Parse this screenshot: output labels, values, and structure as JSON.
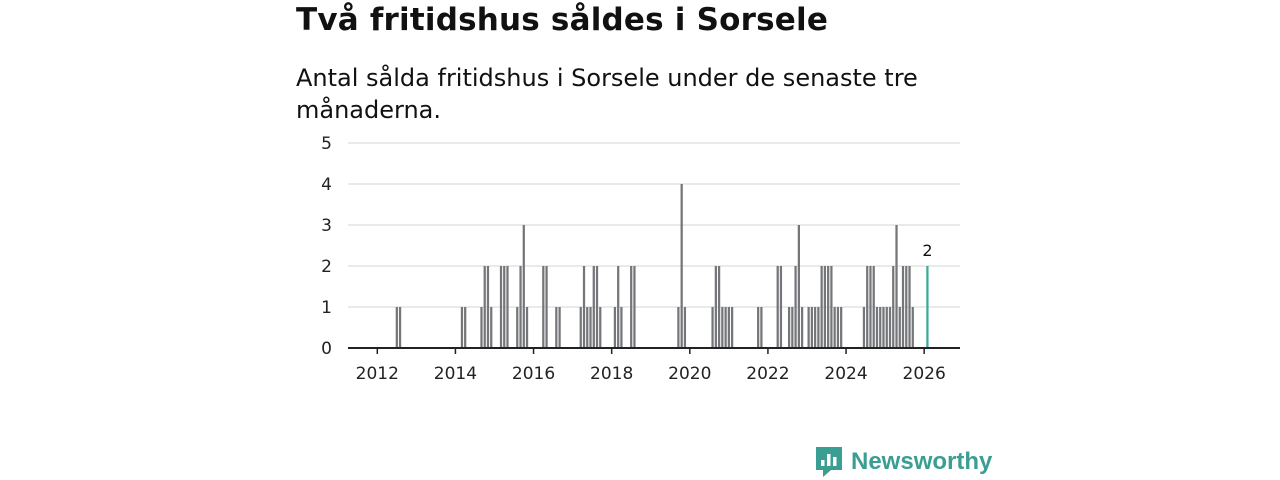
{
  "header": {
    "title": "Två fritidshus såldes i Sorsele",
    "subtitle": "Antal sålda fritidshus i Sorsele under de senaste tre månaderna."
  },
  "brand": {
    "name": "Newsworthy",
    "icon": "newsworthy-logo-icon",
    "color": "#3a9e93"
  },
  "colors": {
    "bar": "#75767a",
    "highlight": "#3aa89b",
    "grid": "#dddddd",
    "axis": "#222222"
  },
  "chart_data": {
    "type": "bar",
    "title": "Två fritidshus såldes i Sorsele",
    "subtitle": "Antal sålda fritidshus i Sorsele under de senaste tre månaderna.",
    "xlabel": "",
    "ylabel": "",
    "xlim": [
      2011.25,
      2026.917
    ],
    "ylim": [
      0,
      5
    ],
    "yticks": [
      0,
      1,
      2,
      3,
      4,
      5
    ],
    "xticks": [
      "2012",
      "2014",
      "2016",
      "2018",
      "2020",
      "2022",
      "2024",
      "2026"
    ],
    "xtick_values": [
      2012,
      2014,
      2016,
      2018,
      2020,
      2022,
      2024,
      2026
    ],
    "grid": true,
    "bar_width_years": 0.0833,
    "x": [
      2012.5,
      2012.583,
      2014.167,
      2014.25,
      2014.667,
      2014.75,
      2014.833,
      2014.917,
      2015.167,
      2015.25,
      2015.333,
      2015.583,
      2015.667,
      2015.75,
      2015.833,
      2016.25,
      2016.333,
      2016.583,
      2016.667,
      2017.208,
      2017.292,
      2017.375,
      2017.458,
      2017.542,
      2017.625,
      2017.708,
      2018.083,
      2018.167,
      2018.25,
      2018.5,
      2018.583,
      2019.708,
      2019.792,
      2019.875,
      2020.583,
      2020.667,
      2020.75,
      2020.833,
      2020.917,
      2021,
      2021.083,
      2021.75,
      2021.833,
      2022.25,
      2022.333,
      2022.542,
      2022.625,
      2022.708,
      2022.792,
      2022.875,
      2023.042,
      2023.125,
      2023.208,
      2023.292,
      2023.375,
      2023.458,
      2023.542,
      2023.625,
      2023.708,
      2023.792,
      2023.875,
      2024.458,
      2024.542,
      2024.625,
      2024.708,
      2024.792,
      2024.875,
      2024.958,
      2025.042,
      2025.125,
      2025.208,
      2025.292,
      2025.375,
      2025.458,
      2025.542,
      2025.625,
      2025.708,
      2026.083
    ],
    "values": [
      1,
      1,
      1,
      1,
      1,
      2,
      2,
      1,
      2,
      2,
      2,
      1,
      2,
      3,
      1,
      2,
      2,
      1,
      1,
      1,
      2,
      1,
      1,
      2,
      2,
      1,
      1,
      2,
      1,
      2,
      2,
      1,
      4,
      1,
      1,
      2,
      2,
      1,
      1,
      1,
      1,
      1,
      1,
      2,
      2,
      1,
      1,
      2,
      3,
      1,
      1,
      1,
      1,
      1,
      2,
      2,
      2,
      2,
      1,
      1,
      1,
      1,
      2,
      2,
      2,
      1,
      1,
      1,
      1,
      1,
      2,
      3,
      1,
      2,
      2,
      2,
      1,
      2
    ],
    "highlight_index": 77,
    "annotations": [
      {
        "x": 2026.083,
        "y": 2,
        "text": "2"
      }
    ]
  }
}
